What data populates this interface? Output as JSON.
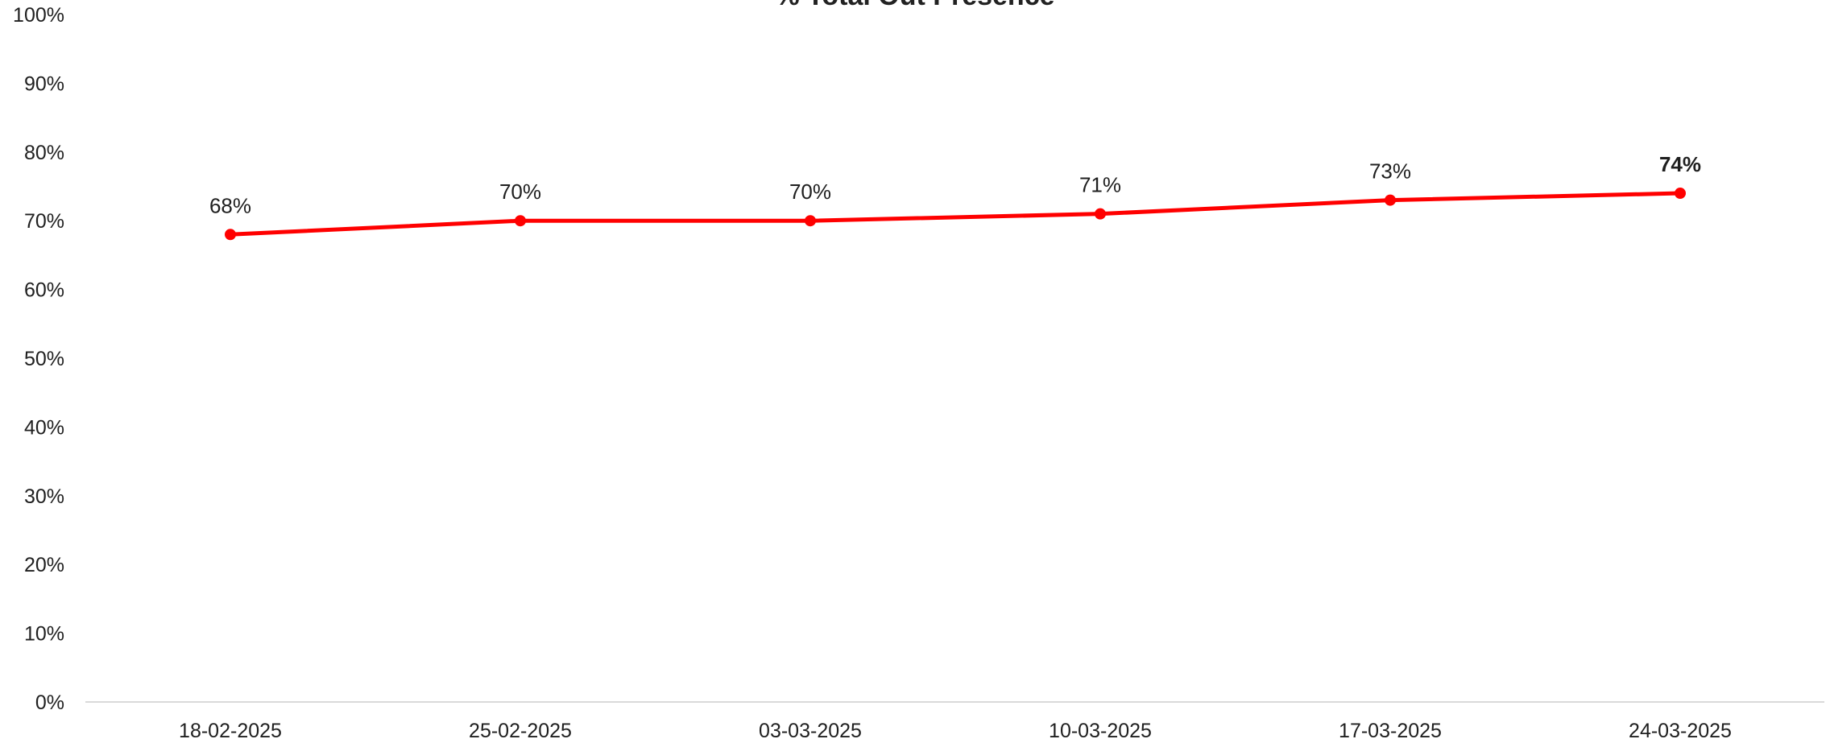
{
  "chart_data": {
    "type": "line",
    "title": "% Total Out Presence",
    "xlabel": "",
    "ylabel": "",
    "categories": [
      "18-02-2025",
      "25-02-2025",
      "03-03-2025",
      "10-03-2025",
      "17-03-2025",
      "24-03-2025"
    ],
    "series": [
      {
        "name": "",
        "values": [
          68,
          70,
          70,
          71,
          73,
          74
        ],
        "data_labels": [
          "68%",
          "70%",
          "70%",
          "71%",
          "73%",
          "74%"
        ],
        "color": "#ff0000",
        "bold_last_label": true
      }
    ],
    "ylim": [
      0,
      100
    ],
    "y_ticks": [
      "0%",
      "10%",
      "20%",
      "30%",
      "40%",
      "50%",
      "60%",
      "70%",
      "80%",
      "90%",
      "100%"
    ],
    "grid": false,
    "legend": "none"
  }
}
